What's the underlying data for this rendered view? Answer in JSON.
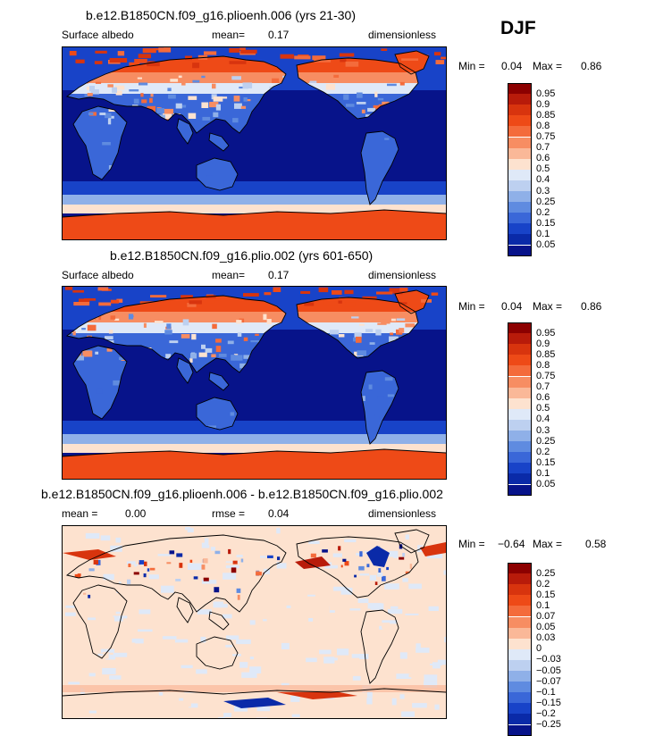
{
  "season": "DJF",
  "panels": [
    {
      "id": "top",
      "title": "b.e12.B1850CN.f09_g16.plioenh.006 (yrs 21-30)",
      "left_label": "Surface albedo",
      "center_label": "mean=",
      "center_value": "0.17",
      "right_label": "dimensionless",
      "min_label": "Min =",
      "min_value": "0.04",
      "max_label": "Max =",
      "max_value": "0.86",
      "variable": "absolute",
      "colorbar": {
        "labels": [
          "0.95",
          "0.9",
          "0.85",
          "0.8",
          "0.75",
          "0.7",
          "0.6",
          "0.5",
          "0.4",
          "0.3",
          "0.25",
          "0.2",
          "0.15",
          "0.1",
          "0.05"
        ],
        "colors": [
          "#8c0000",
          "#b81b0a",
          "#d8340e",
          "#ee4a17",
          "#f46b3b",
          "#f78d62",
          "#fab898",
          "#fde2cf",
          "#dfe9f8",
          "#bdd0f0",
          "#8fb0e8",
          "#5f8be0",
          "#3a67d8",
          "#1843c8",
          "#0a2aa8",
          "#07138a"
        ]
      }
    },
    {
      "id": "middle",
      "title": "b.e12.B1850CN.f09_g16.plio.002 (yrs 601-650)",
      "left_label": "Surface albedo",
      "center_label": "mean=",
      "center_value": "0.17",
      "right_label": "dimensionless",
      "min_label": "Min =",
      "min_value": "0.04",
      "max_label": "Max =",
      "max_value": "0.86",
      "variable": "absolute",
      "colorbar": {
        "labels": [
          "0.95",
          "0.9",
          "0.85",
          "0.8",
          "0.75",
          "0.7",
          "0.6",
          "0.5",
          "0.4",
          "0.3",
          "0.25",
          "0.2",
          "0.15",
          "0.1",
          "0.05"
        ],
        "colors": [
          "#8c0000",
          "#b81b0a",
          "#d8340e",
          "#ee4a17",
          "#f46b3b",
          "#f78d62",
          "#fab898",
          "#fde2cf",
          "#dfe9f8",
          "#bdd0f0",
          "#8fb0e8",
          "#5f8be0",
          "#3a67d8",
          "#1843c8",
          "#0a2aa8",
          "#07138a"
        ]
      }
    },
    {
      "id": "bottom",
      "title": "b.e12.B1850CN.f09_g16.plioenh.006 - b.e12.B1850CN.f09_g16.plio.002",
      "left_label": "mean =",
      "left_value": "0.00",
      "center_label": "rmse =",
      "center_value": "0.04",
      "right_label": "dimensionless",
      "min_label": "Min =",
      "min_value": "−0.64",
      "max_label": "Max =",
      "max_value": "0.58",
      "variable": "difference",
      "colorbar": {
        "labels": [
          "0.25",
          "0.2",
          "0.15",
          "0.1",
          "0.07",
          "0.05",
          "0.03",
          "0",
          "−0.03",
          "−0.05",
          "−0.07",
          "−0.1",
          "−0.15",
          "−0.2",
          "−0.25"
        ],
        "colors": [
          "#8c0000",
          "#b81b0a",
          "#d8340e",
          "#ee4a17",
          "#f46b3b",
          "#f78d62",
          "#fab898",
          "#fde2cf",
          "#dfe9f8",
          "#bdd0f0",
          "#8fb0e8",
          "#5f8be0",
          "#3a67d8",
          "#1843c8",
          "#0a2aa8",
          "#07138a"
        ]
      }
    }
  ]
}
